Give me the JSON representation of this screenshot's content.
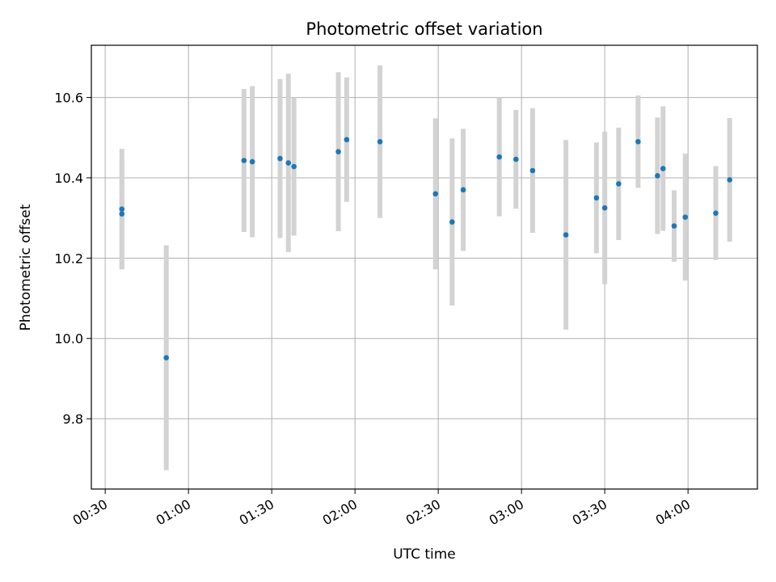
{
  "chart_data": {
    "type": "scatter",
    "title": "Photometric offset variation",
    "xlabel": "UTC time",
    "ylabel": "Photometric offset",
    "x_tick_labels": [
      "00:30",
      "01:00",
      "01:30",
      "02:00",
      "02:30",
      "03:00",
      "03:30",
      "04:00"
    ],
    "y_tick_labels": [
      "9.8",
      "10.0",
      "10.2",
      "10.4",
      "10.6"
    ],
    "xlim": [
      "00:25",
      "04:25"
    ],
    "ylim": [
      9.625,
      10.73
    ],
    "grid": true,
    "point_color": "#1f77b4",
    "errorbar_color": "#d3d3d3",
    "series": [
      {
        "x": [
          "00:36",
          "00:36",
          "00:52",
          "01:20",
          "01:23",
          "01:33",
          "01:36",
          "01:38",
          "01:54",
          "01:57",
          "02:09",
          "02:29",
          "02:35",
          "02:39",
          "02:52",
          "02:58",
          "03:04",
          "03:16",
          "03:27",
          "03:30",
          "03:35",
          "03:42",
          "03:49",
          "03:51",
          "03:55",
          "03:59",
          "04:10",
          "04:15"
        ],
        "y": [
          10.31,
          10.322,
          9.952,
          10.443,
          10.44,
          10.448,
          10.437,
          10.428,
          10.465,
          10.495,
          10.49,
          10.36,
          10.29,
          10.37,
          10.452,
          10.446,
          10.418,
          10.258,
          10.35,
          10.325,
          10.385,
          10.49,
          10.405,
          10.423,
          10.28,
          10.302,
          10.312,
          10.395
        ],
        "yerr": [
          0.135,
          0.15,
          0.28,
          0.178,
          0.188,
          0.198,
          0.222,
          0.172,
          0.198,
          0.155,
          0.19,
          0.188,
          0.208,
          0.152,
          0.148,
          0.123,
          0.155,
          0.236,
          0.138,
          0.19,
          0.14,
          0.115,
          0.145,
          0.155,
          0.089,
          0.158,
          0.117,
          0.154
        ]
      }
    ]
  }
}
